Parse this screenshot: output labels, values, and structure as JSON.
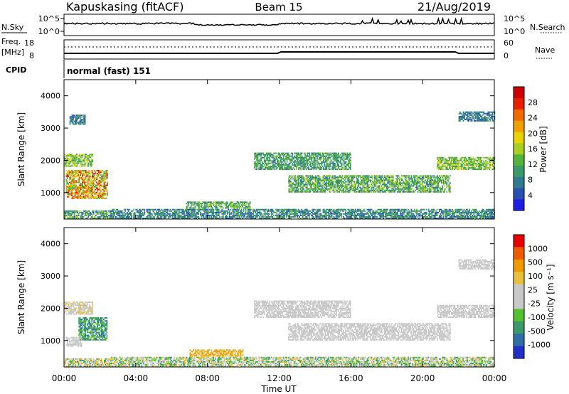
{
  "header": {
    "station": "Kapuskasing (fitACF)",
    "beam": "Beam 15",
    "date": "21/Aug/2019"
  },
  "top_panels": {
    "nsky_label": "N.Sky",
    "nsearch_label": "N.Search",
    "noise_ticks": [
      "10^5",
      "10^0"
    ],
    "freq_label_1": "Freq.",
    "freq_label_2": "[MHz]",
    "freq_ticks": [
      "18",
      "8"
    ],
    "nave_label": "Nave",
    "nave_ticks": [
      "60",
      "0"
    ],
    "cpid_label": "CPID",
    "cpid_value": "normal (fast) 151"
  },
  "colors": {
    "power": [
      "#1e1ee6",
      "#2a50b4",
      "#2f7a92",
      "#3a9a6a",
      "#55b23a",
      "#a8d020",
      "#e8d200",
      "#f0a000",
      "#f06a00",
      "#e82000",
      "#cc0000"
    ],
    "velocity": [
      "#e60000",
      "#f05a00",
      "#f09a00",
      "#e8c03c",
      "#c8c8c8",
      "#c8c8c8",
      "#55c030",
      "#3a9a6a",
      "#2f6ea6",
      "#2030c8"
    ]
  },
  "chart_data": [
    {
      "type": "heatmap",
      "name": "power",
      "ylabel": "Slant Range [km]",
      "ylim": [
        180,
        4500
      ],
      "y_ticks": [
        1000,
        2000,
        3000,
        4000
      ],
      "colorbar_label": "Power [dB]",
      "colorbar_ticks": [
        "4",
        "8",
        "12",
        "16",
        "20",
        "24",
        "28"
      ],
      "colorbar_range": [
        0,
        30
      ],
      "x_ticks": [
        "00:00",
        "04:00",
        "08:00",
        "12:00",
        "16:00",
        "20:00",
        "00:00"
      ],
      "xlim_hours": [
        0,
        24
      ],
      "regions": [
        {
          "t": [
            0.0,
            2.6
          ],
          "r": [
            180,
            420
          ],
          "v": [
            4,
            16
          ]
        },
        {
          "t": [
            2.6,
            24.0
          ],
          "r": [
            180,
            480
          ],
          "v": [
            4,
            12
          ]
        },
        {
          "t": [
            0.1,
            2.4
          ],
          "r": [
            800,
            1700
          ],
          "v": [
            10,
            28
          ]
        },
        {
          "t": [
            0.0,
            1.6
          ],
          "r": [
            1800,
            2200
          ],
          "v": [
            8,
            18
          ]
        },
        {
          "t": [
            0.3,
            1.2
          ],
          "r": [
            3100,
            3400
          ],
          "v": [
            4,
            10
          ]
        },
        {
          "t": [
            6.8,
            10.4
          ],
          "r": [
            500,
            700
          ],
          "v": [
            6,
            16
          ]
        },
        {
          "t": [
            10.6,
            16.0
          ],
          "r": [
            1700,
            2200
          ],
          "v": [
            6,
            14
          ]
        },
        {
          "t": [
            12.5,
            21.5
          ],
          "r": [
            1000,
            1500
          ],
          "v": [
            6,
            16
          ]
        },
        {
          "t": [
            20.8,
            24.0
          ],
          "r": [
            1700,
            2100
          ],
          "v": [
            8,
            18
          ]
        },
        {
          "t": [
            22.0,
            24.0
          ],
          "r": [
            3200,
            3500
          ],
          "v": [
            4,
            10
          ]
        }
      ]
    },
    {
      "type": "heatmap",
      "name": "velocity",
      "ylabel": "Slant Range [km]",
      "ylim": [
        180,
        4500
      ],
      "y_ticks": [
        1000,
        2000,
        3000,
        4000
      ],
      "xlabel": "Time UT",
      "colorbar_label": "Velocity [m s⁻¹]",
      "colorbar_ticks": [
        "1000",
        "500",
        "100",
        "25",
        "-25",
        "-100",
        "-500",
        "-1000"
      ],
      "x_ticks": [
        "00:00",
        "04:00",
        "08:00",
        "12:00",
        "16:00",
        "20:00",
        "00:00"
      ],
      "xlim_hours": [
        0,
        24
      ],
      "regions": [
        {
          "t": [
            0.0,
            2.6
          ],
          "r": [
            180,
            420
          ],
          "v": [
            2,
            7
          ]
        },
        {
          "t": [
            2.6,
            24.0
          ],
          "r": [
            180,
            480
          ],
          "v": [
            3,
            7
          ]
        },
        {
          "t": [
            0.8,
            2.4
          ],
          "r": [
            1000,
            1700
          ],
          "v": [
            6,
            8
          ]
        },
        {
          "t": [
            0.1,
            1.0
          ],
          "r": [
            800,
            1100
          ],
          "v": [
            4,
            5
          ]
        },
        {
          "t": [
            0.0,
            1.6
          ],
          "r": [
            1800,
            2200
          ],
          "v": [
            3,
            5
          ]
        },
        {
          "t": [
            7.0,
            10.0
          ],
          "r": [
            500,
            700
          ],
          "v": [
            2,
            3
          ]
        },
        {
          "t": [
            10.6,
            16.0
          ],
          "r": [
            1700,
            2200
          ],
          "v": [
            4,
            5
          ]
        },
        {
          "t": [
            12.5,
            21.5
          ],
          "r": [
            1000,
            1500
          ],
          "v": [
            4,
            5
          ]
        },
        {
          "t": [
            20.8,
            24.0
          ],
          "r": [
            1700,
            2100
          ],
          "v": [
            4,
            5
          ]
        },
        {
          "t": [
            22.0,
            24.0
          ],
          "r": [
            3200,
            3500
          ],
          "v": [
            4,
            5
          ]
        }
      ]
    }
  ]
}
